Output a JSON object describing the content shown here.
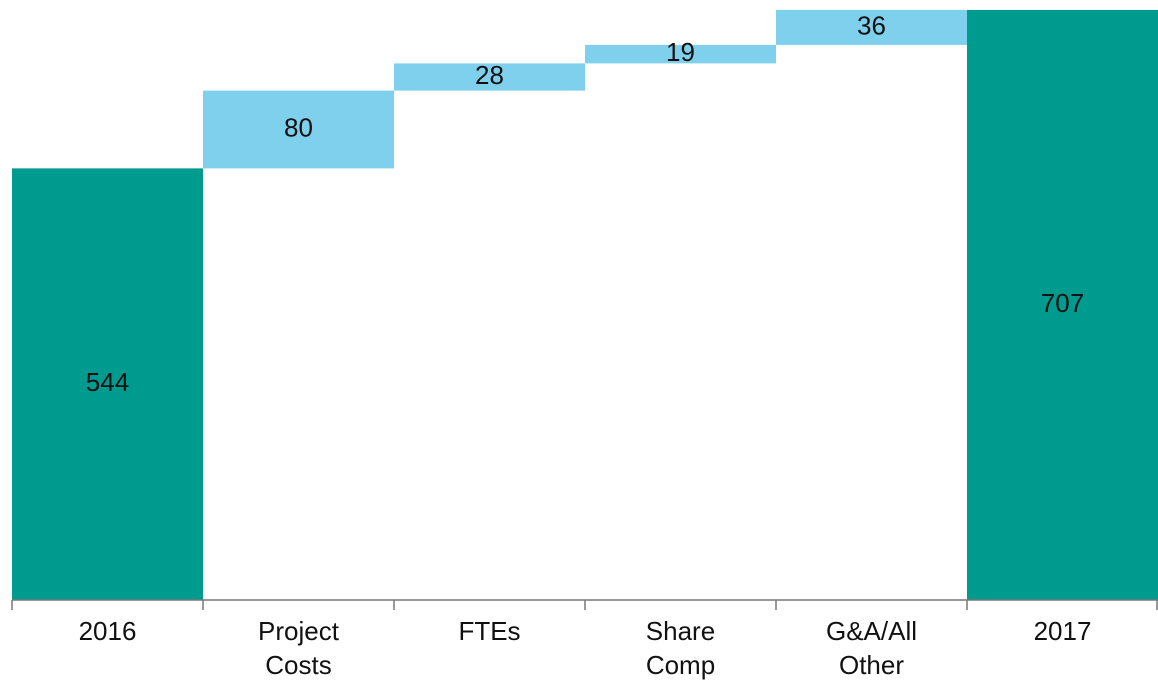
{
  "chart_data": {
    "type": "waterfall",
    "categories": [
      "2016",
      "Project Costs",
      "FTEs",
      "Share Comp",
      "G&A/All Other",
      "2017"
    ],
    "values": [
      544,
      80,
      28,
      19,
      36,
      707
    ],
    "total_color": "#009b8f",
    "delta_color": "#7fd0ec",
    "ylim": [
      100,
      710
    ]
  }
}
